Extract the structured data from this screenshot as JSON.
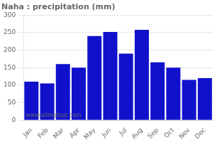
{
  "chart_data": {
    "type": "bar",
    "title": "Naha : precipitation (mm)",
    "categories": [
      "Jan",
      "Feb",
      "Mar",
      "Apr",
      "May",
      "Jun",
      "Jul",
      "Aug",
      "Sep",
      "Oct",
      "Nov",
      "Dec"
    ],
    "values": [
      110,
      105,
      160,
      150,
      240,
      252,
      190,
      258,
      165,
      150,
      115,
      120
    ],
    "color": "#1111cc",
    "ylim": [
      0,
      300
    ],
    "yticks": [
      0,
      50,
      100,
      150,
      200,
      250,
      300
    ],
    "grid": true,
    "annotations": [
      "www.allmetsat.com"
    ]
  }
}
